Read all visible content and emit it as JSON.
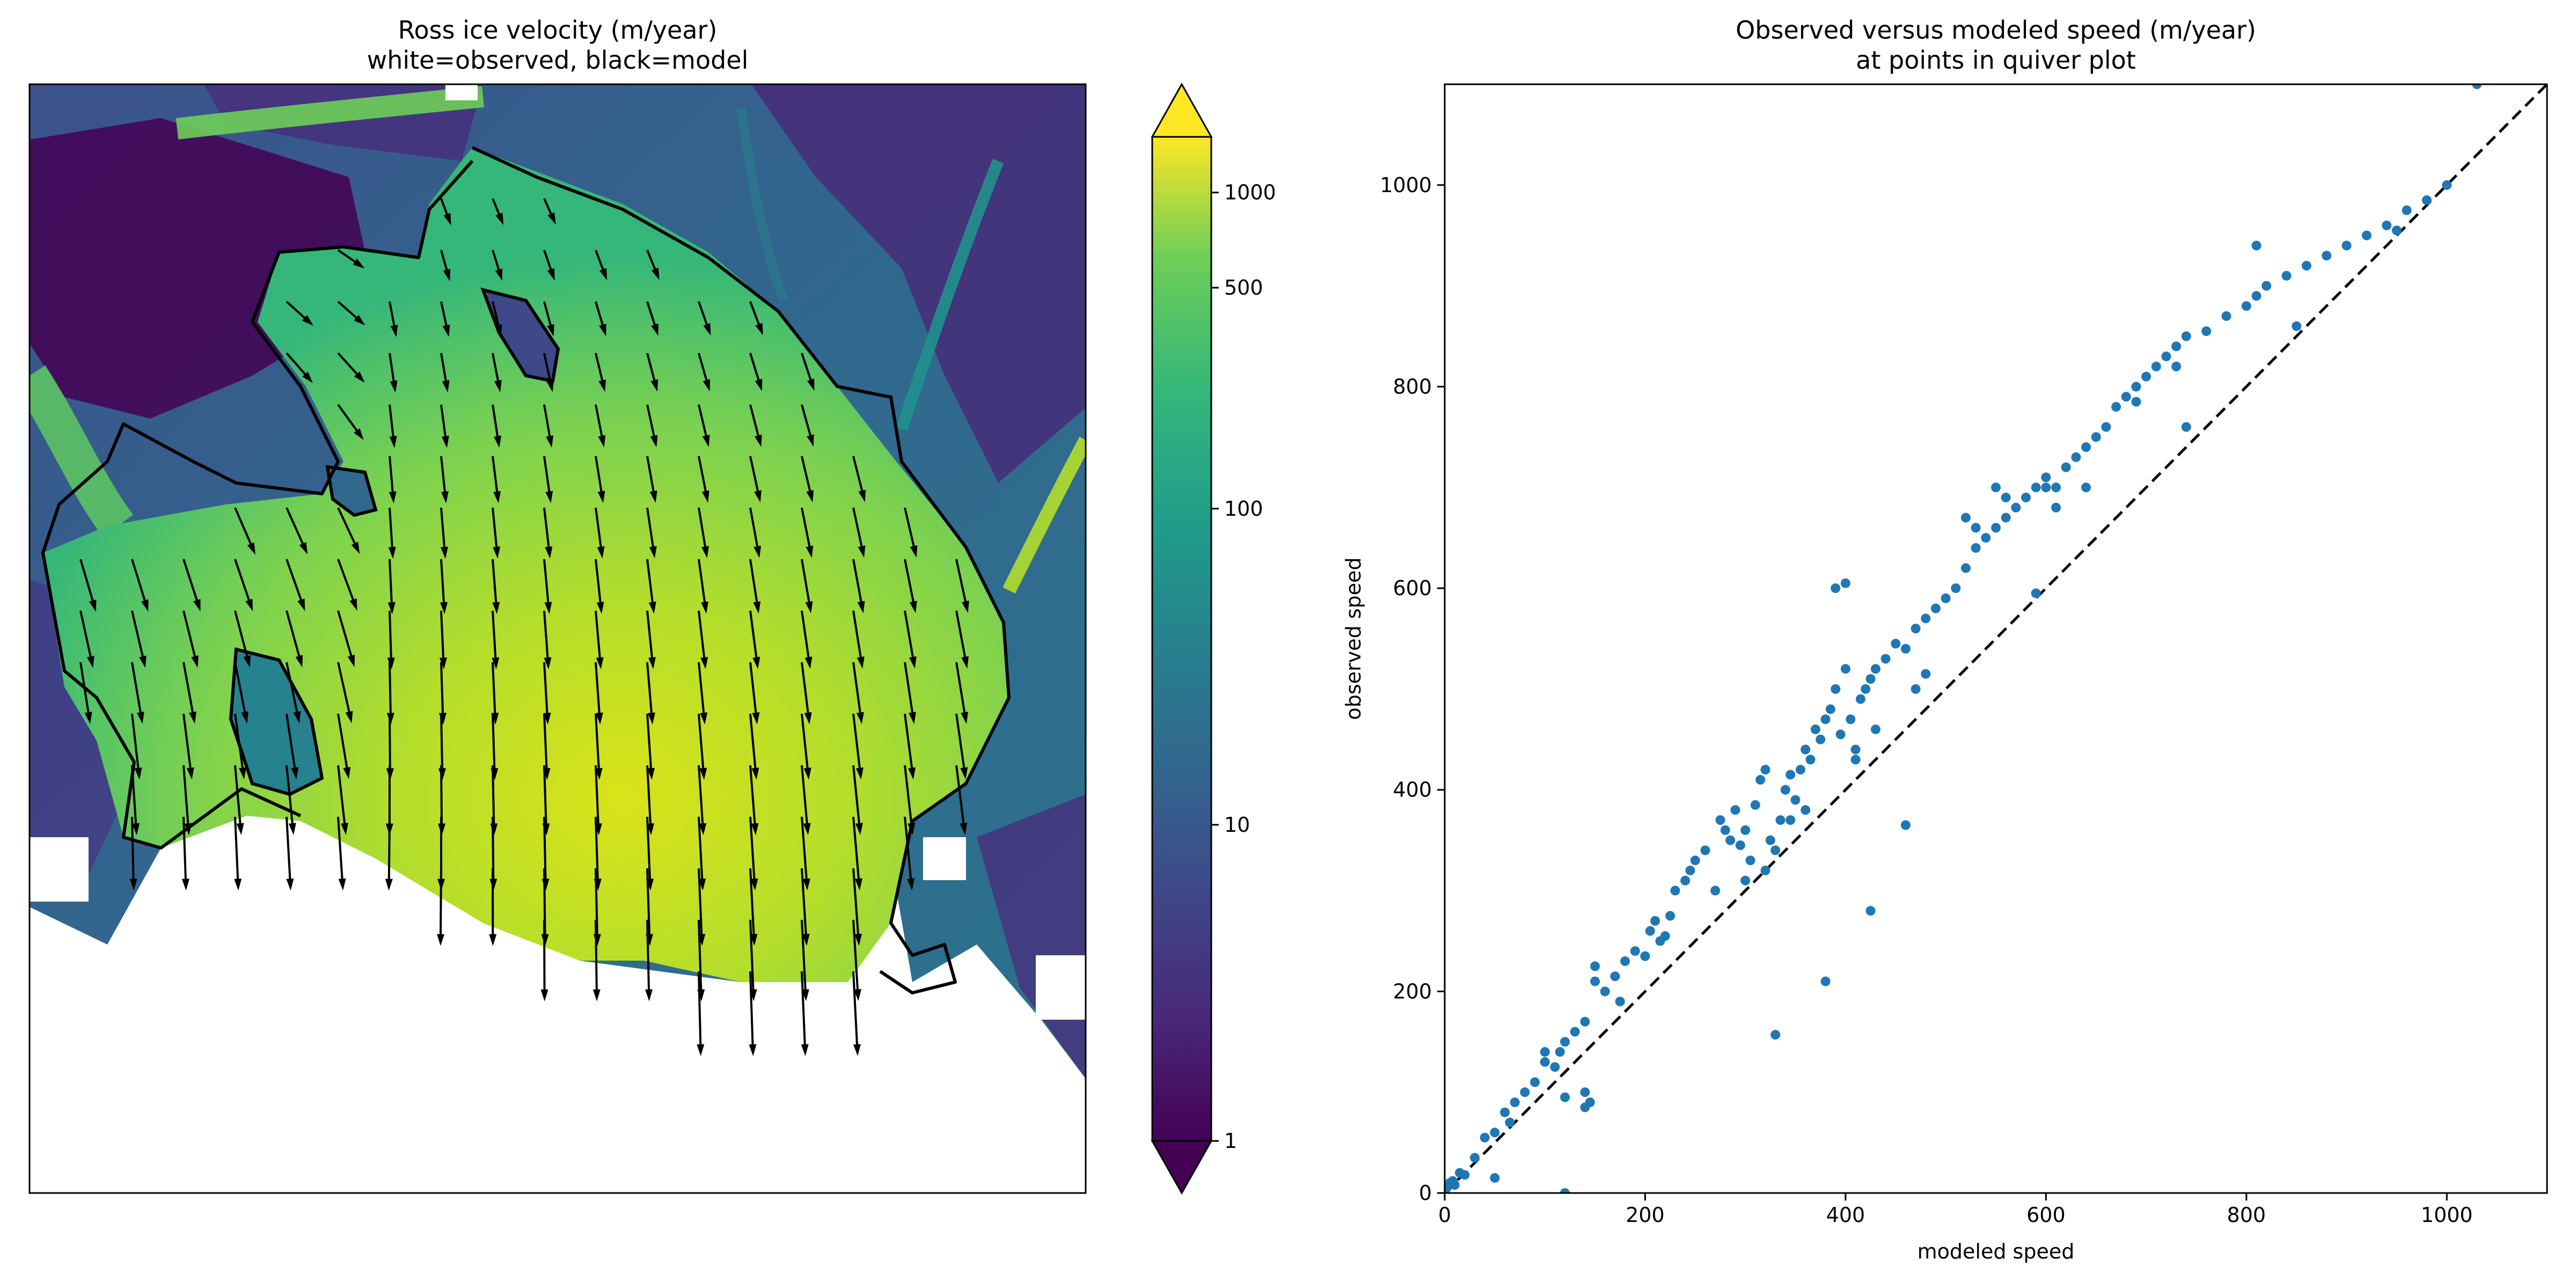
{
  "chart_data": [
    {
      "type": "heatmap",
      "title": "Ross ice velocity (m/year)",
      "subtitle": "white=observed, black=model",
      "colormap": "viridis",
      "colorbar": {
        "scale": "log",
        "range": [
          1,
          1500
        ],
        "ticks": [
          1,
          10,
          100,
          500,
          1000
        ],
        "tick_labels": [
          "1",
          "10",
          "100",
          "500",
          "1000"
        ],
        "extend": "both"
      },
      "overlays": [
        "black grounding-line contour",
        "quiver arrows (white=observed, black=model)"
      ]
    },
    {
      "type": "scatter",
      "title": "Observed versus modeled speed (m/year)",
      "subtitle": "at points in quiver plot",
      "xlabel": "modeled speed",
      "ylabel": "observed speed",
      "xlim": [
        0,
        1100
      ],
      "ylim": [
        0,
        1100
      ],
      "xticks": [
        0,
        200,
        400,
        600,
        800,
        1000
      ],
      "yticks": [
        0,
        200,
        400,
        600,
        800,
        1000
      ],
      "point_color": "#1f77b4",
      "reference_line": {
        "style": "dashed",
        "color": "#000000",
        "x": [
          0,
          1100
        ],
        "y": [
          0,
          1100
        ]
      },
      "series": [
        {
          "x": [
            2,
            5,
            8,
            10,
            15,
            20,
            30,
            40,
            50,
            60,
            65,
            70,
            80,
            90,
            100,
            110,
            115,
            120,
            130,
            140,
            140,
            145,
            150,
            160,
            170,
            175,
            180,
            190,
            200,
            205,
            210,
            215,
            220,
            225,
            230,
            240,
            245,
            250,
            260,
            270,
            275,
            280,
            285,
            290,
            295,
            300,
            305,
            310,
            315,
            320,
            325,
            330,
            335,
            340,
            345,
            350,
            355,
            360,
            365,
            370,
            375,
            380,
            385,
            390,
            395,
            400,
            405,
            410,
            415,
            420,
            425,
            430,
            440,
            450,
            460,
            470,
            480,
            490,
            500,
            510,
            520,
            530,
            540,
            550,
            560,
            570,
            580,
            590,
            600,
            610,
            620,
            630,
            640,
            650,
            660,
            670,
            680,
            690,
            700,
            710,
            720,
            730,
            740,
            760,
            780,
            800,
            810,
            820,
            840,
            860,
            880,
            900,
            920,
            940,
            950,
            960,
            980,
            1000,
            1030,
            330,
            380,
            425,
            460,
            120,
            50,
            100,
            140,
            390,
            400,
            530,
            550,
            590,
            600,
            520,
            560,
            610,
            640,
            690,
            730,
            740,
            810,
            850,
            300,
            320,
            345,
            360,
            410,
            430,
            470,
            480,
            150,
            120
          ],
          "y": [
            5,
            10,
            12,
            8,
            20,
            18,
            35,
            55,
            60,
            80,
            70,
            90,
            100,
            110,
            130,
            125,
            140,
            150,
            160,
            170,
            100,
            90,
            210,
            200,
            215,
            190,
            230,
            240,
            235,
            260,
            270,
            250,
            255,
            275,
            300,
            310,
            320,
            330,
            340,
            300,
            370,
            360,
            350,
            380,
            345,
            360,
            330,
            385,
            410,
            420,
            350,
            340,
            370,
            400,
            415,
            390,
            420,
            440,
            430,
            460,
            450,
            470,
            480,
            500,
            455,
            520,
            470,
            430,
            490,
            500,
            510,
            520,
            530,
            545,
            540,
            560,
            570,
            580,
            590,
            600,
            620,
            640,
            650,
            660,
            670,
            680,
            690,
            700,
            710,
            700,
            720,
            730,
            740,
            750,
            760,
            780,
            790,
            800,
            810,
            820,
            830,
            840,
            850,
            855,
            870,
            880,
            890,
            900,
            910,
            920,
            930,
            940,
            950,
            960,
            955,
            975,
            985,
            1000,
            1100,
            157,
            210,
            280,
            365,
            0,
            15,
            140,
            85,
            600,
            605,
            660,
            700,
            595,
            700,
            670,
            690,
            680,
            700,
            785,
            820,
            760,
            940,
            860,
            310,
            320,
            370,
            380,
            440,
            460,
            500,
            515,
            225,
            95
          ]
        }
      ]
    }
  ]
}
